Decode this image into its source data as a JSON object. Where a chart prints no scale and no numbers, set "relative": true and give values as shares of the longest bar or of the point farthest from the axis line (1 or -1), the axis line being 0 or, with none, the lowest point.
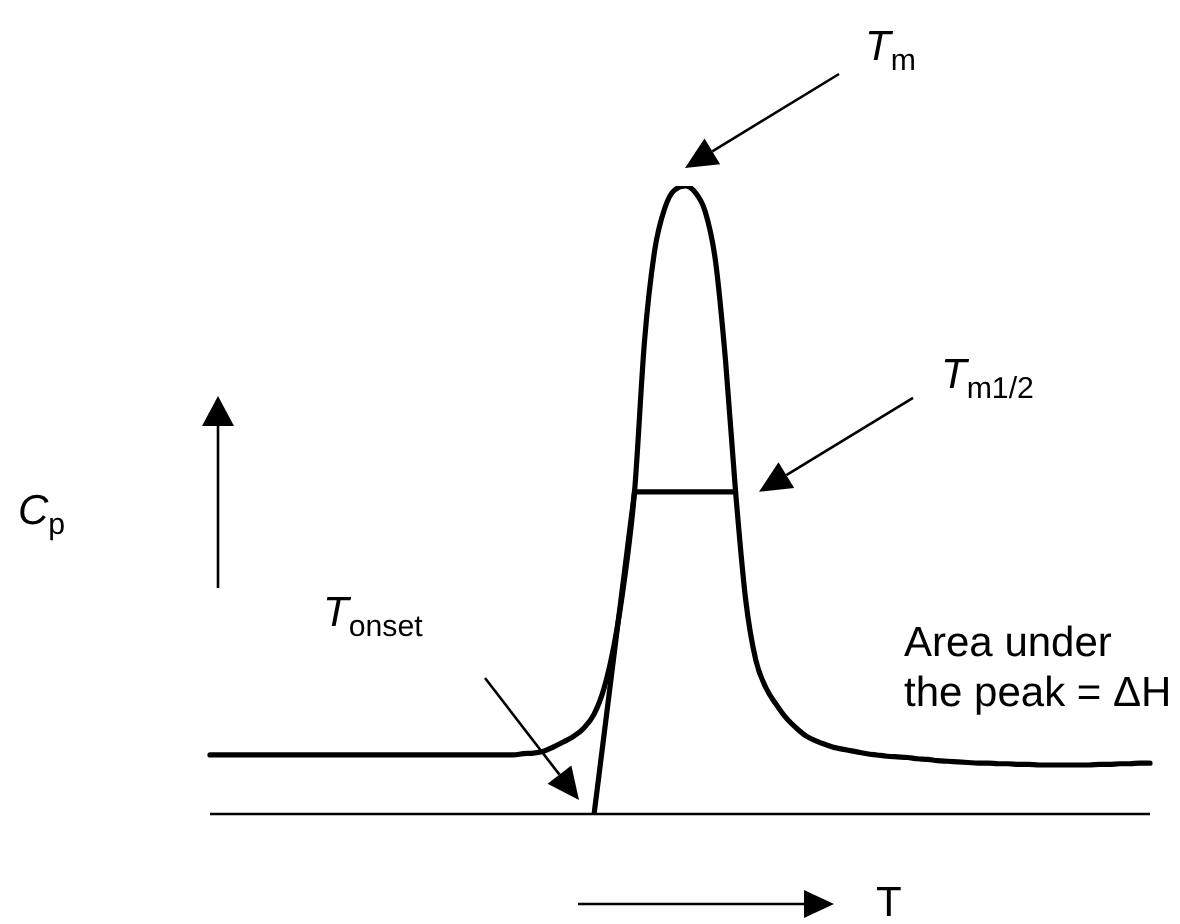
{
  "chart_data": {
    "type": "line",
    "relative": true,
    "xlabel": "T",
    "ylabel": "C$_{p}$",
    "annotations": [
      "T$_{m}$",
      "T$_{m1/2}$",
      "T$_{onset}$",
      "Area under the peak = ΔH"
    ],
    "categories": [
      null,
      null,
      null,
      null,
      null,
      null,
      null,
      null,
      null,
      null,
      null,
      null,
      null,
      null,
      null,
      null,
      null,
      null,
      null,
      null,
      null,
      null,
      null,
      null,
      null,
      null,
      null,
      null,
      null,
      null,
      null,
      null,
      null,
      null,
      null,
      null,
      null,
      null,
      null,
      null,
      null,
      null,
      null,
      null,
      null,
      null,
      null,
      null,
      null,
      null,
      null,
      null,
      null,
      null,
      null,
      null,
      null,
      null,
      null,
      null,
      null,
      null,
      null,
      null,
      null,
      null,
      null,
      null,
      null,
      null,
      null,
      null,
      null,
      null,
      null,
      null,
      null,
      null,
      null,
      null,
      null,
      null,
      null,
      null,
      null,
      null,
      null,
      null,
      null,
      null,
      null,
      null,
      null,
      null
    ],
    "series": [
      {
        "color": "#000000",
        "values": [
          0.094,
          0.094,
          0.094,
          0.094,
          0.094,
          0.094,
          0.094,
          0.094,
          0.094,
          0.094,
          0.094,
          0.094,
          0.094,
          0.094,
          0.094,
          0.094,
          0.094,
          0.094,
          0.094,
          0.094,
          0.094,
          0.094,
          0.094,
          0.094,
          0.094,
          0.094,
          0.094,
          0.094,
          0.094,
          0.094,
          0.094,
          0.096,
          0.097,
          0.1,
          0.107,
          0.115,
          0.124,
          0.137,
          0.159,
          0.201,
          0.271,
          0.373,
          0.513,
          0.755,
          0.898,
          0.965,
          0.994,
          1.0,
          0.99,
          0.959,
          0.882,
          0.723,
          0.513,
          0.341,
          0.245,
          0.201,
          0.175,
          0.153,
          0.137,
          0.124,
          0.116,
          0.11,
          0.105,
          0.102,
          0.099,
          0.096,
          0.094,
          0.092,
          0.091,
          0.09,
          0.088,
          0.087,
          0.085,
          0.084,
          0.083,
          0.082,
          0.081,
          0.081,
          0.08,
          0.08,
          0.079,
          0.079,
          0.078,
          0.078,
          0.078,
          0.078,
          0.078,
          0.078,
          0.079,
          0.079,
          0.08,
          0.08,
          0.081,
          0.081
        ]
      },
      {
        "color": "#000000",
        "values": [
          null,
          null,
          null,
          null,
          null,
          null,
          null,
          null,
          null,
          null,
          null,
          null,
          null,
          null,
          null,
          null,
          null,
          null,
          null,
          null,
          null,
          null,
          null,
          null,
          null,
          null,
          null,
          null,
          null,
          null,
          null,
          null,
          null,
          null,
          null,
          null,
          null,
          null,
          0,
          0.128,
          0.257,
          0.385,
          0.513,
          null,
          null,
          null,
          null,
          null,
          null,
          null,
          null,
          null,
          null,
          null,
          null,
          null,
          null,
          null,
          null,
          null,
          null,
          null,
          null,
          null,
          null,
          null,
          null,
          null,
          null,
          null,
          null,
          null,
          null,
          null,
          null,
          null,
          null,
          null,
          null,
          null,
          null,
          null,
          null,
          null,
          null,
          null,
          null,
          null,
          null,
          null,
          null,
          null,
          null,
          null
        ]
      },
      {
        "color": "#000000",
        "values": [
          null,
          null,
          null,
          null,
          null,
          null,
          null,
          null,
          null,
          null,
          null,
          null,
          null,
          null,
          null,
          null,
          null,
          null,
          null,
          null,
          null,
          null,
          null,
          null,
          null,
          null,
          null,
          null,
          null,
          null,
          null,
          null,
          null,
          null,
          null,
          null,
          null,
          null,
          null,
          null,
          null,
          null,
          0.513,
          0.513,
          0.513,
          0.513,
          0.513,
          0.513,
          0.513,
          0.513,
          0.513,
          0.513,
          0.513,
          null,
          null,
          null,
          null,
          null,
          null,
          null,
          null,
          null,
          null,
          null,
          null,
          null,
          null,
          null,
          null,
          null,
          null,
          null,
          null,
          null,
          null,
          null,
          null,
          null,
          null,
          null,
          null,
          null,
          null,
          null,
          null,
          null,
          null,
          null,
          null,
          null,
          null,
          null,
          null,
          null
        ]
      }
    ]
  }
}
